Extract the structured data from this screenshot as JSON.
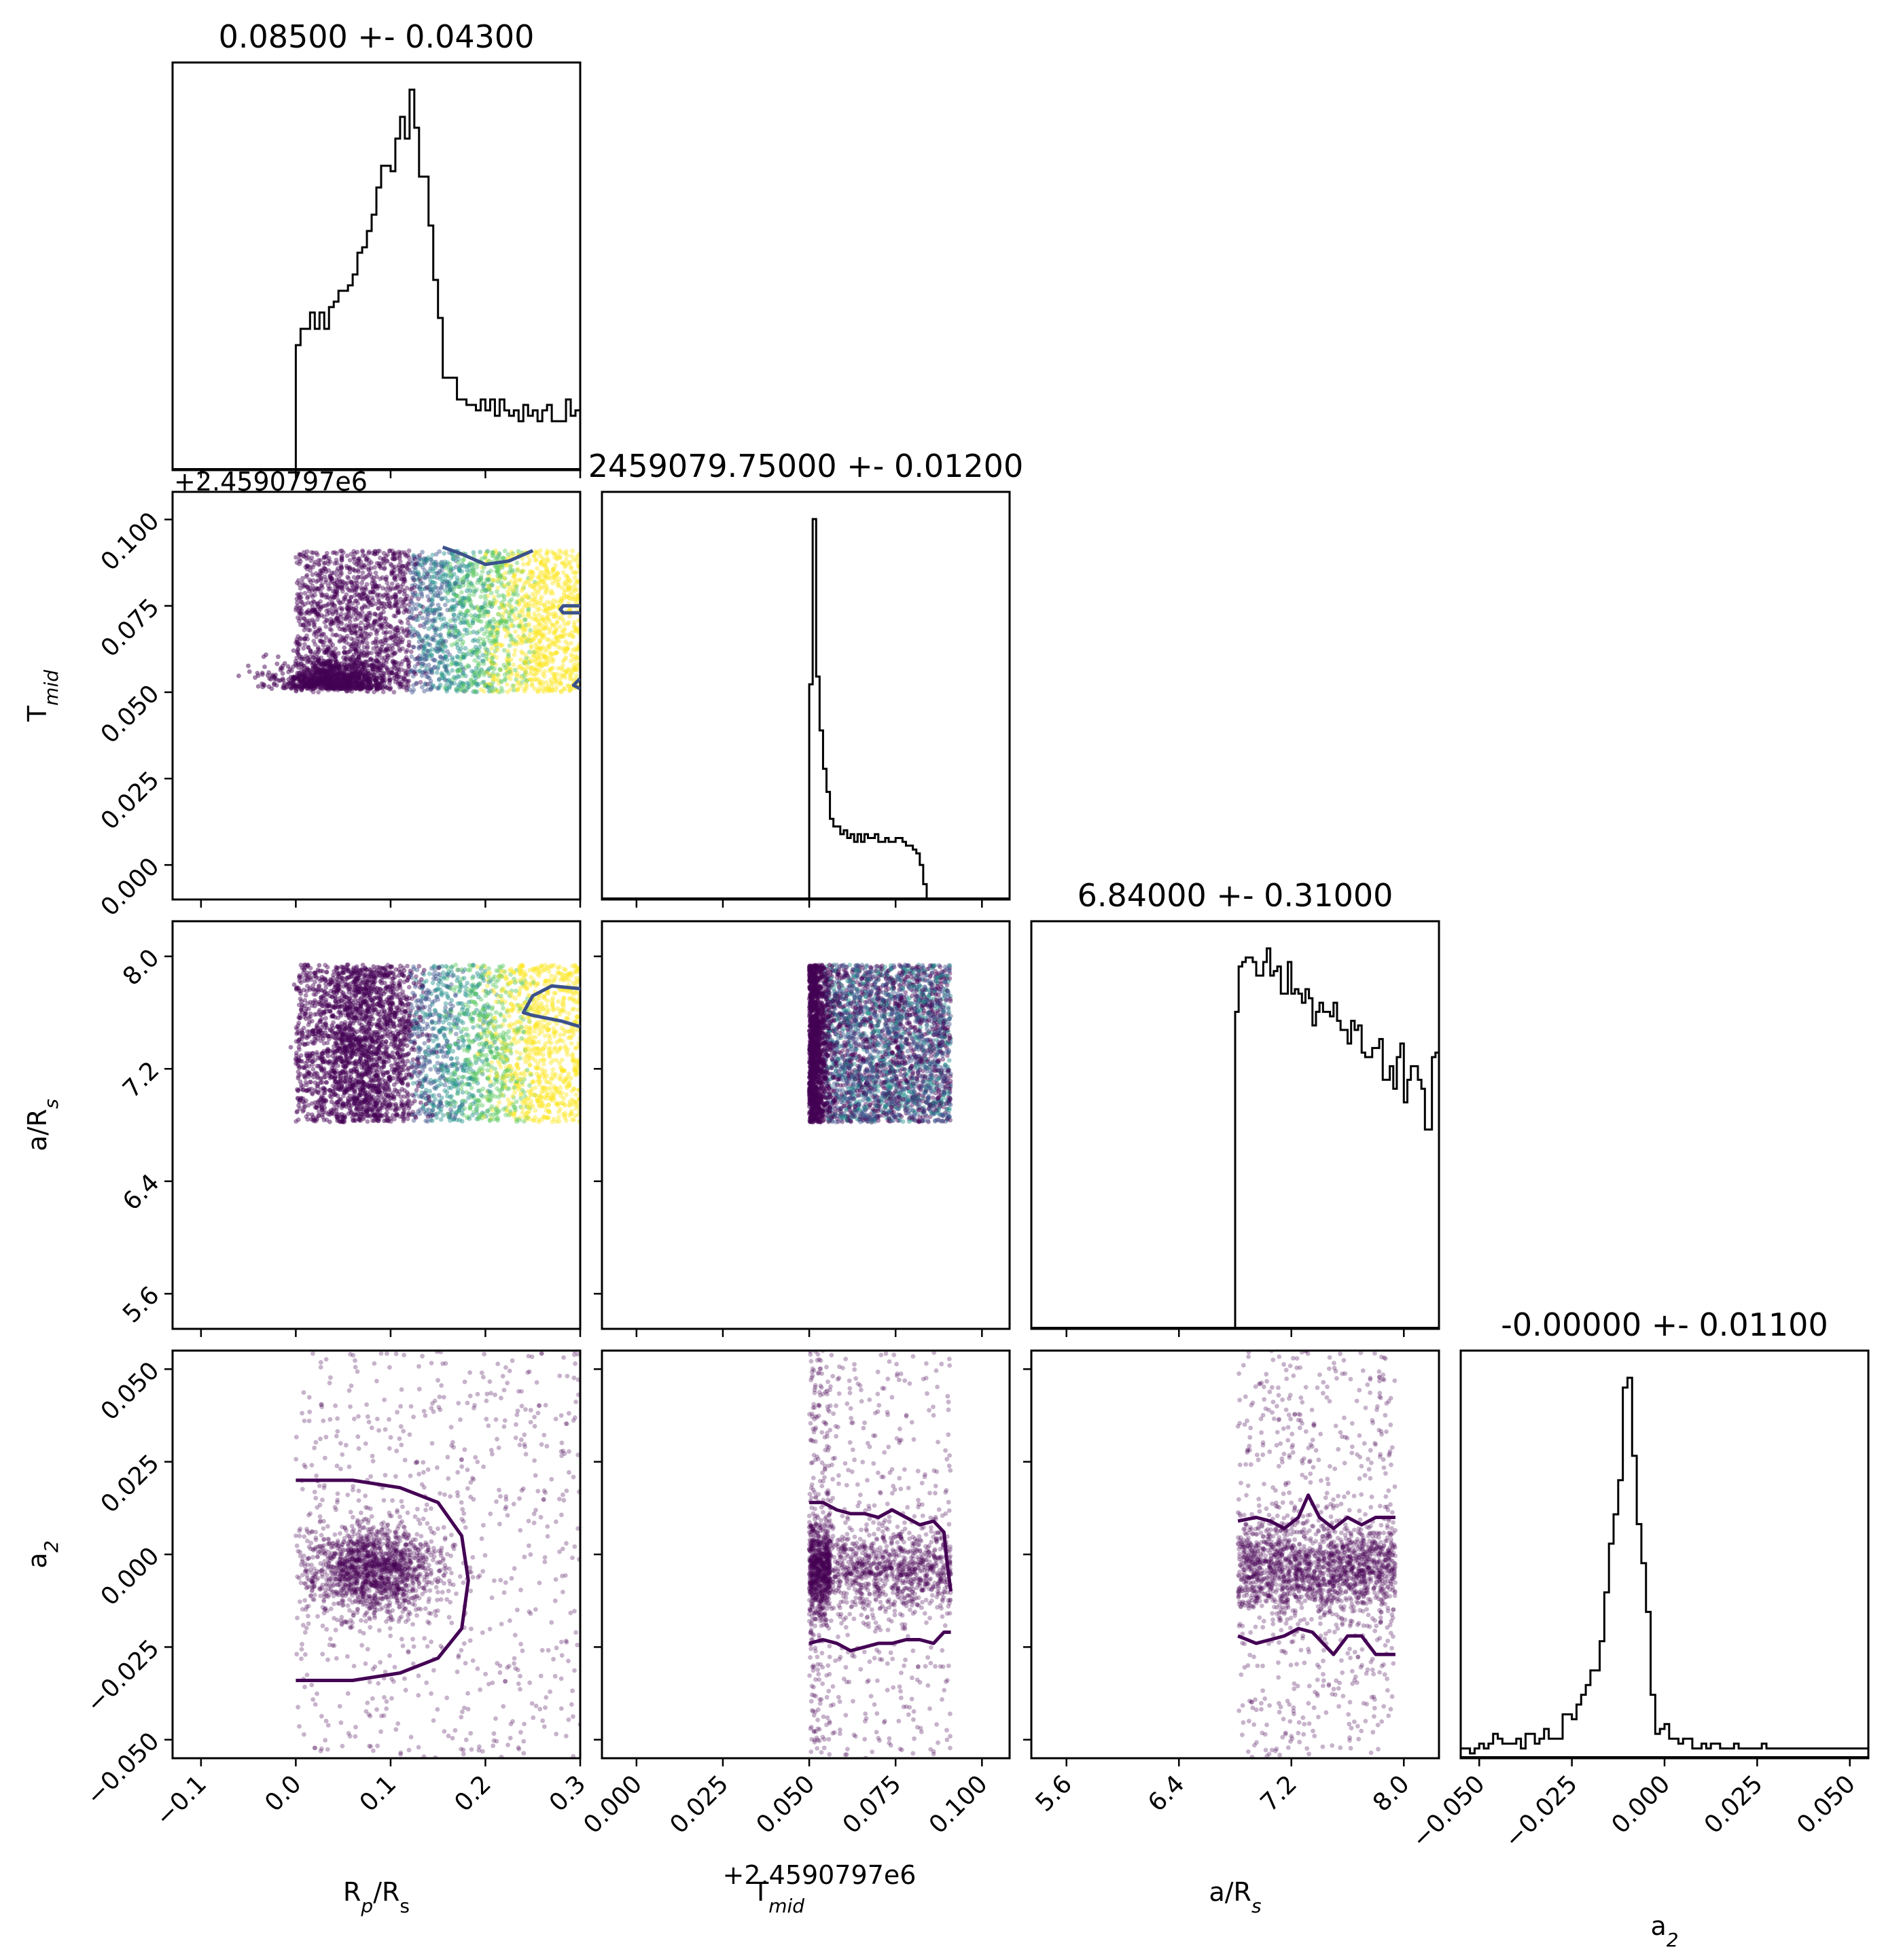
{
  "chart_data": {
    "type": "corner",
    "parameters": [
      {
        "key": "rp",
        "label": "Rp/Rs",
        "title": "0.08500 +- 0.04300",
        "range": [
          -0.13,
          0.3
        ],
        "ticks": [
          -0.1,
          0.0,
          0.1,
          0.2,
          0.3
        ],
        "tick_labels": [
          "−0.1",
          "0.0",
          "0.1",
          "0.2",
          "0.3"
        ]
      },
      {
        "key": "tmid",
        "label": "Tmid",
        "title": "2459079.75000 +- 0.01200",
        "offset_label": "+2.4590797e6",
        "range": [
          -0.01,
          0.108
        ],
        "ticks": [
          0.0,
          0.025,
          0.05,
          0.075,
          0.1
        ],
        "tick_labels": [
          "0.000",
          "0.025",
          "0.050",
          "0.075",
          "0.100"
        ]
      },
      {
        "key": "ars",
        "label": "a/Rs",
        "title": "6.84000 +- 0.31000",
        "range": [
          5.35,
          8.25
        ],
        "ticks": [
          5.6,
          6.4,
          7.2,
          8.0
        ],
        "tick_labels": [
          "5.6",
          "6.4",
          "7.2",
          "8.0"
        ]
      },
      {
        "key": "a2",
        "label": "a2",
        "title": "-0.00000 +- 0.01100",
        "range": [
          -0.055,
          0.055
        ],
        "ticks": [
          -0.05,
          -0.025,
          0.0,
          0.025,
          0.05
        ],
        "tick_labels": [
          "−0.050",
          "−0.025",
          "0.000",
          "0.025",
          "0.050"
        ]
      }
    ],
    "histograms": {
      "rp": {
        "x0": 0.0,
        "bin": 0.005,
        "counts": [
          23,
          26,
          26,
          29,
          26,
          29,
          26,
          30,
          31,
          33,
          33,
          34,
          36,
          40,
          41,
          44,
          47,
          52,
          56,
          56,
          55,
          61,
          65,
          61,
          70,
          63,
          54,
          54,
          45,
          35,
          28,
          17,
          17,
          17,
          13,
          13,
          12,
          12,
          11,
          13,
          11,
          13,
          10,
          13,
          11,
          10,
          11,
          9,
          12,
          10,
          11,
          9,
          11,
          12,
          9,
          9,
          9,
          13,
          10,
          11
        ]
      },
      "tmid": {
        "x0": 0.05,
        "bin": 0.001,
        "counts": [
          56,
          99,
          58,
          44,
          34,
          28,
          21,
          19,
          19,
          17,
          18,
          16,
          17,
          15,
          17,
          15,
          17,
          16,
          16,
          17,
          15,
          15,
          16,
          15,
          15,
          16,
          16,
          15,
          14,
          14,
          13,
          12,
          9,
          4
        ]
      },
      "ars": {
        "x0": 6.8,
        "bin": 0.025,
        "counts": [
          70,
          80,
          81,
          82,
          82,
          81,
          78,
          78,
          81,
          84,
          78,
          79,
          80,
          74,
          74,
          81,
          74,
          75,
          74,
          72,
          75,
          73,
          67,
          70,
          72,
          70,
          70,
          69,
          72,
          68,
          66,
          66,
          63,
          68,
          66,
          67,
          61,
          60,
          60,
          62,
          62,
          64,
          55,
          55,
          58,
          53,
          60,
          63,
          50,
          55,
          58,
          58,
          55,
          53,
          44,
          44,
          60,
          61,
          49,
          53,
          12,
          3,
          1,
          0
        ]
      },
      "a2": {
        "x0": -0.055,
        "bin": 0.00125,
        "counts": [
          2,
          2,
          1,
          2,
          3,
          2,
          3,
          5,
          4,
          3,
          3,
          3,
          4,
          2,
          5,
          5,
          3,
          4,
          6,
          4,
          4,
          4,
          9,
          9,
          8,
          11,
          13,
          15,
          18,
          18,
          24,
          34,
          44,
          50,
          57,
          76,
          78,
          62,
          48,
          40,
          30,
          13,
          5,
          6,
          7,
          4,
          4,
          3,
          4,
          4,
          2,
          2,
          3,
          2,
          3,
          3,
          2,
          2,
          2,
          3,
          2,
          2,
          2,
          2,
          2,
          3,
          2,
          2,
          2,
          2,
          2,
          2,
          2,
          2,
          2,
          2,
          2,
          2,
          2,
          2,
          2,
          2,
          2,
          2,
          2,
          2,
          2,
          2
        ]
      }
    },
    "scatter_pairs": [
      {
        "x": "rp",
        "y": "tmid",
        "color_by_likelihood": true
      },
      {
        "x": "rp",
        "y": "ars",
        "color_by_likelihood": true
      },
      {
        "x": "tmid",
        "y": "ars",
        "color_by_likelihood": true
      },
      {
        "x": "rp",
        "y": "a2",
        "color_by_likelihood": false
      },
      {
        "x": "tmid",
        "y": "a2",
        "color_by_likelihood": false
      },
      {
        "x": "ars",
        "y": "a2",
        "color_by_likelihood": false
      }
    ],
    "sample_ranges": {
      "rp": [
        0.0,
        0.3
      ],
      "tmid": [
        0.05,
        0.091
      ],
      "ars": [
        6.82,
        7.94
      ],
      "a2": [
        -0.055,
        0.055
      ]
    },
    "contours": [
      {
        "panel": "rp-tmid",
        "color": "#3b528b",
        "lines": [
          [
            [
              0.155,
              0.092
            ],
            [
              0.175,
              0.09
            ],
            [
              0.2,
              0.087
            ],
            [
              0.225,
              0.088
            ],
            [
              0.25,
              0.091
            ]
          ],
          [
            [
              0.3,
              0.073
            ],
            [
              0.282,
              0.073
            ],
            [
              0.279,
              0.074
            ],
            [
              0.282,
              0.075
            ],
            [
              0.3,
              0.075
            ]
          ],
          [
            [
              0.3,
              0.051
            ],
            [
              0.293,
              0.052
            ],
            [
              0.3,
              0.054
            ]
          ]
        ]
      },
      {
        "panel": "rp-ars",
        "color": "#3b528b",
        "lines": [
          [
            [
              0.3,
              7.77
            ],
            [
              0.27,
              7.79
            ],
            [
              0.25,
              7.72
            ],
            [
              0.24,
              7.6
            ],
            [
              0.25,
              7.58
            ],
            [
              0.28,
              7.54
            ],
            [
              0.3,
              7.5
            ]
          ]
        ]
      },
      {
        "panel": "rp-a2",
        "color": "#440154",
        "lines": [
          [
            [
              0.0,
              0.02
            ],
            [
              0.06,
              0.02
            ],
            [
              0.11,
              0.018
            ],
            [
              0.15,
              0.014
            ],
            [
              0.175,
              0.005
            ],
            [
              0.182,
              -0.007
            ],
            [
              0.175,
              -0.02
            ],
            [
              0.15,
              -0.028
            ],
            [
              0.11,
              -0.032
            ],
            [
              0.06,
              -0.034
            ],
            [
              0.0,
              -0.034
            ]
          ]
        ]
      },
      {
        "panel": "tmid-a2",
        "color": "#440154",
        "lines": [
          [
            [
              0.05,
              0.014
            ],
            [
              0.054,
              0.014
            ],
            [
              0.058,
              0.012
            ],
            [
              0.062,
              0.011
            ],
            [
              0.066,
              0.011
            ],
            [
              0.07,
              0.01
            ],
            [
              0.074,
              0.012
            ],
            [
              0.078,
              0.01
            ],
            [
              0.082,
              0.008
            ],
            [
              0.086,
              0.009
            ],
            [
              0.089,
              0.006
            ],
            [
              0.09,
              -0.003
            ],
            [
              0.091,
              -0.01
            ]
          ],
          [
            [
              0.05,
              -0.024
            ],
            [
              0.054,
              -0.023
            ],
            [
              0.058,
              -0.024
            ],
            [
              0.062,
              -0.026
            ],
            [
              0.066,
              -0.025
            ],
            [
              0.07,
              -0.024
            ],
            [
              0.074,
              -0.024
            ],
            [
              0.078,
              -0.023
            ],
            [
              0.082,
              -0.023
            ],
            [
              0.086,
              -0.024
            ],
            [
              0.089,
              -0.021
            ],
            [
              0.091,
              -0.021
            ]
          ]
        ]
      },
      {
        "panel": "ars-a2",
        "color": "#440154",
        "lines": [
          [
            [
              6.82,
              0.009
            ],
            [
              6.95,
              0.01
            ],
            [
              7.05,
              0.009
            ],
            [
              7.15,
              0.007
            ],
            [
              7.25,
              0.01
            ],
            [
              7.32,
              0.016
            ],
            [
              7.4,
              0.01
            ],
            [
              7.5,
              0.007
            ],
            [
              7.6,
              0.01
            ],
            [
              7.7,
              0.008
            ],
            [
              7.8,
              0.01
            ],
            [
              7.94,
              0.01
            ]
          ],
          [
            [
              6.82,
              -0.022
            ],
            [
              6.95,
              -0.024
            ],
            [
              7.05,
              -0.023
            ],
            [
              7.15,
              -0.022
            ],
            [
              7.25,
              -0.02
            ],
            [
              7.35,
              -0.021
            ],
            [
              7.45,
              -0.025
            ],
            [
              7.5,
              -0.027
            ],
            [
              7.6,
              -0.022
            ],
            [
              7.7,
              -0.022
            ],
            [
              7.8,
              -0.027
            ],
            [
              7.94,
              -0.027
            ]
          ]
        ]
      }
    ],
    "colors": {
      "frame": "#000000",
      "histogram": "#000000",
      "posterior_dense": "#440154",
      "likelihood_cmap": [
        "#440154",
        "#3b528b",
        "#21918c",
        "#5ec962",
        "#fde725"
      ]
    }
  }
}
